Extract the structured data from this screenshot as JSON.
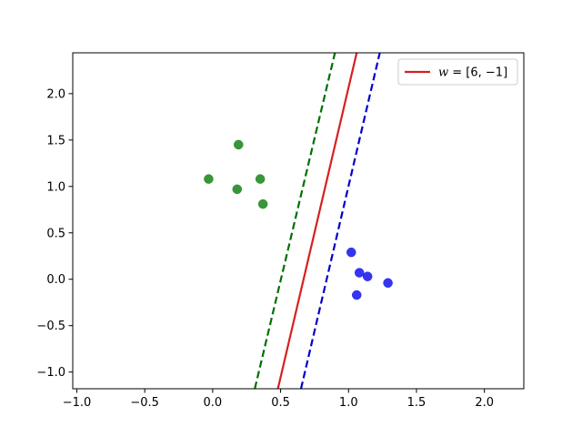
{
  "chart_data": {
    "type": "scatter",
    "title": "",
    "xlabel": "",
    "ylabel": "",
    "xlim": [
      -1.03,
      2.29
    ],
    "ylim": [
      -1.18,
      2.44
    ],
    "xticks": [
      {
        "value": -1.0,
        "label": "−1.0"
      },
      {
        "value": -0.5,
        "label": "−0.5"
      },
      {
        "value": 0.0,
        "label": "0.0"
      },
      {
        "value": 0.5,
        "label": "0.5"
      },
      {
        "value": 1.0,
        "label": "1.0"
      },
      {
        "value": 1.5,
        "label": "1.5"
      },
      {
        "value": 2.0,
        "label": "2.0"
      }
    ],
    "yticks": [
      {
        "value": -1.0,
        "label": "−1.0"
      },
      {
        "value": -0.5,
        "label": "−0.5"
      },
      {
        "value": 0.0,
        "label": "0.0"
      },
      {
        "value": 0.5,
        "label": "0.5"
      },
      {
        "value": 1.0,
        "label": "1.0"
      },
      {
        "value": 1.5,
        "label": "1.5"
      },
      {
        "value": 2.0,
        "label": "2.0"
      }
    ],
    "grid": false,
    "legend_position": "top-right",
    "point_groups": [
      {
        "color": "#228b22",
        "points": [
          {
            "x": -0.03,
            "y": 1.08
          },
          {
            "x": 0.19,
            "y": 1.45
          },
          {
            "x": 0.18,
            "y": 0.97
          },
          {
            "x": 0.35,
            "y": 1.08
          },
          {
            "x": 0.37,
            "y": 0.81
          }
        ]
      },
      {
        "color": "#1f1fee",
        "points": [
          {
            "x": 1.02,
            "y": 0.29
          },
          {
            "x": 1.08,
            "y": 0.07
          },
          {
            "x": 1.14,
            "y": 0.03
          },
          {
            "x": 1.06,
            "y": -0.17
          },
          {
            "x": 1.29,
            "y": -0.04
          }
        ]
      }
    ],
    "lines": [
      {
        "name": "w = [6, −1]",
        "color": "#d62020",
        "style": "solid",
        "x_at_ylim_bottom": 0.48,
        "x_at_ylim_top": 1.06
      },
      {
        "name": "",
        "color": "#007000",
        "style": "dashed",
        "x_at_ylim_bottom": 0.31,
        "x_at_ylim_top": 0.9
      },
      {
        "name": "",
        "color": "#0000cc",
        "style": "dashed",
        "x_at_ylim_bottom": 0.65,
        "x_at_ylim_top": 1.23
      }
    ],
    "legend": [
      {
        "italic": "w",
        "rest": " = [6, −1]",
        "color": "#d62020"
      }
    ]
  }
}
